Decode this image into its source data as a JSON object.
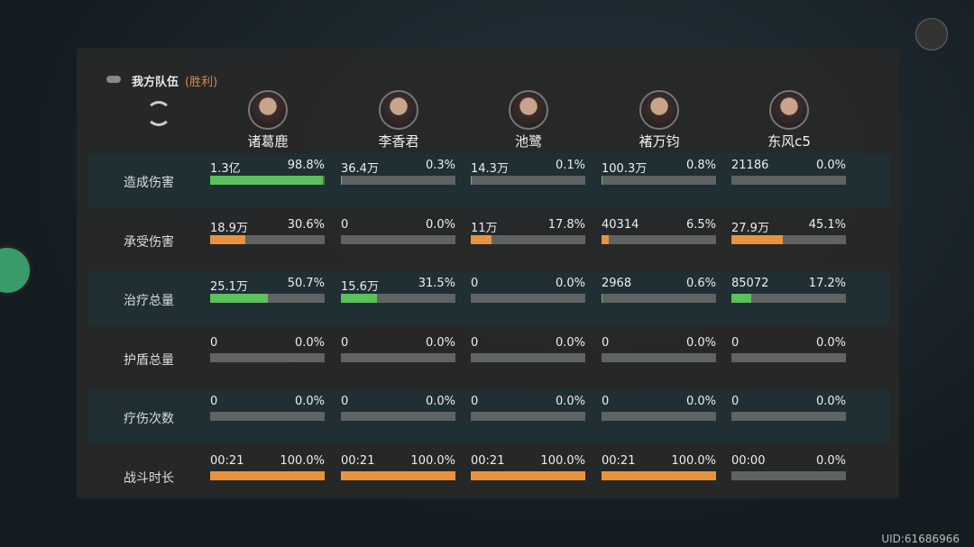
{
  "header": {
    "title": "我方队伍",
    "result": "(胜利)"
  },
  "characters": [
    "诸葛鹿",
    "李香君",
    "池鹭",
    "褚万钧",
    "东风c5"
  ],
  "rows": [
    {
      "label": "造成伤害",
      "bar_color": "#5cc05c",
      "cells": [
        {
          "value": "1.3亿",
          "share": 98.8,
          "share_label": "98.8%"
        },
        {
          "value": "36.4万",
          "share": 0.3,
          "share_label": "0.3%"
        },
        {
          "value": "14.3万",
          "share": 0.1,
          "share_label": "0.1%"
        },
        {
          "value": "100.3万",
          "share": 0.8,
          "share_label": "0.8%"
        },
        {
          "value": "21186",
          "share": 0,
          "share_label": "0.0%"
        }
      ]
    },
    {
      "label": "承受伤害",
      "bar_color": "#e8923e",
      "cells": [
        {
          "value": "18.9万",
          "share": 30.6,
          "share_label": "30.6%"
        },
        {
          "value": "0",
          "share": 0,
          "share_label": "0.0%"
        },
        {
          "value": "11万",
          "share": 17.8,
          "share_label": "17.8%"
        },
        {
          "value": "40314",
          "share": 6.5,
          "share_label": "6.5%"
        },
        {
          "value": "27.9万",
          "share": 45.1,
          "share_label": "45.1%"
        }
      ]
    },
    {
      "label": "治疗总量",
      "bar_color": "#5cc05c",
      "cells": [
        {
          "value": "25.1万",
          "share": 50.7,
          "share_label": "50.7%"
        },
        {
          "value": "15.6万",
          "share": 31.5,
          "share_label": "31.5%"
        },
        {
          "value": "0",
          "share": 0,
          "share_label": "0.0%"
        },
        {
          "value": "2968",
          "share": 0.6,
          "share_label": "0.6%"
        },
        {
          "value": "85072",
          "share": 17.2,
          "share_label": "17.2%"
        }
      ]
    },
    {
      "label": "护盾总量",
      "bar_color": "#5cc05c",
      "cells": [
        {
          "value": "0",
          "share": 0,
          "share_label": "0.0%"
        },
        {
          "value": "0",
          "share": 0,
          "share_label": "0.0%"
        },
        {
          "value": "0",
          "share": 0,
          "share_label": "0.0%"
        },
        {
          "value": "0",
          "share": 0,
          "share_label": "0.0%"
        },
        {
          "value": "0",
          "share": 0,
          "share_label": "0.0%"
        }
      ]
    },
    {
      "label": "疗伤次数",
      "bar_color": "#5cc05c",
      "cells": [
        {
          "value": "0",
          "share": 0,
          "share_label": "0.0%"
        },
        {
          "value": "0",
          "share": 0,
          "share_label": "0.0%"
        },
        {
          "value": "0",
          "share": 0,
          "share_label": "0.0%"
        },
        {
          "value": "0",
          "share": 0,
          "share_label": "0.0%"
        },
        {
          "value": "0",
          "share": 0,
          "share_label": "0.0%"
        }
      ]
    },
    {
      "label": "战斗时长",
      "bar_color": "#e8923e",
      "cells": [
        {
          "value": "00:21",
          "share": 100,
          "share_label": "100.0%"
        },
        {
          "value": "00:21",
          "share": 100,
          "share_label": "100.0%"
        },
        {
          "value": "00:21",
          "share": 100,
          "share_label": "100.0%"
        },
        {
          "value": "00:21",
          "share": 100,
          "share_label": "100.0%"
        },
        {
          "value": "00:00",
          "share": 0,
          "share_label": "0.0%"
        }
      ]
    }
  ],
  "uid": "UID:61686966"
}
